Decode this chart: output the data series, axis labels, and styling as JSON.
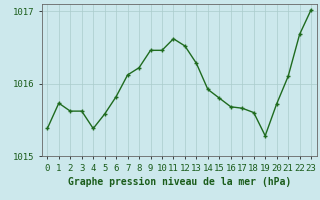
{
  "x": [
    0,
    1,
    2,
    3,
    4,
    5,
    6,
    7,
    8,
    9,
    10,
    11,
    12,
    13,
    14,
    15,
    16,
    17,
    18,
    19,
    20,
    21,
    22,
    23
  ],
  "y": [
    1015.38,
    1015.73,
    1015.62,
    1015.62,
    1015.38,
    1015.58,
    1015.82,
    1016.12,
    1016.22,
    1016.46,
    1016.46,
    1016.62,
    1016.52,
    1016.28,
    1015.92,
    1015.8,
    1015.68,
    1015.66,
    1015.6,
    1015.28,
    1015.72,
    1016.1,
    1016.68,
    1017.02
  ],
  "ylim": [
    1015.0,
    1017.1
  ],
  "yticks": [
    1015,
    1016,
    1017
  ],
  "xlabel": "Graphe pression niveau de la mer (hPa)",
  "line_color": "#1f6b1f",
  "marker_color": "#1f6b1f",
  "bg_color": "#cce8ec",
  "grid_color": "#aacccc",
  "axis_label_color": "#1a5c1a",
  "tick_label_color": "#1a5c1a",
  "border_color": "#888888",
  "xlabel_fontsize": 7.0,
  "tick_fontsize": 6.5
}
